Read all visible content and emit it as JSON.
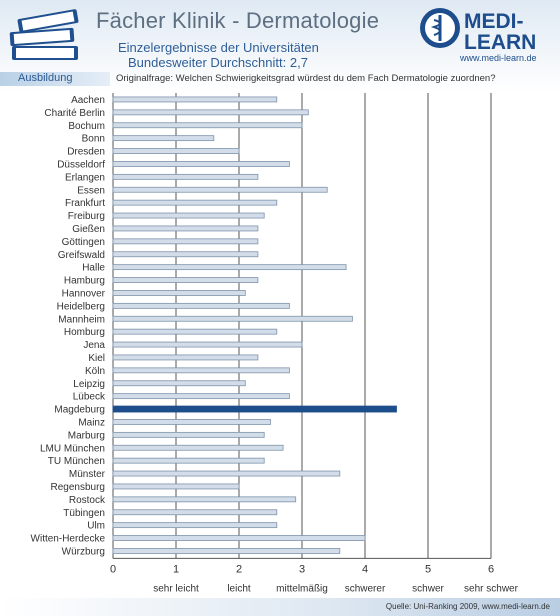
{
  "header": {
    "title": "Fächer Klinik - Dermatologie",
    "subtitle1": "Einzelergebnisse der Universitäten",
    "subtitle2": "Bundesweiter Durchschnitt: 2,7",
    "logo_line1": "MEDI-",
    "logo_line2": "LEARN",
    "logo_url": "www.medi-learn.de"
  },
  "section": {
    "label": "Ausbildung",
    "question": "Originalfrage: Welchen Schwierigkeitsgrad würdest du dem Fach Dermatologie zuordnen?"
  },
  "footer": {
    "source": "Quelle: Uni-Ranking 2009, www.medi-learn.de"
  },
  "colors": {
    "bar": "#d3dde9",
    "bar_border": "#7f93ab",
    "highlight": "#1d4e8b",
    "grid": "#555555"
  },
  "chart_data": {
    "type": "bar",
    "orientation": "horizontal",
    "xlim": [
      0,
      6
    ],
    "x_ticks": [
      0,
      1,
      2,
      3,
      4,
      5,
      6
    ],
    "x_tick_labels": [
      "0",
      "1",
      "2",
      "3",
      "4",
      "5",
      "6"
    ],
    "x_category_labels": [
      {
        "x": 1,
        "label": "sehr leicht"
      },
      {
        "x": 2,
        "label": "leicht"
      },
      {
        "x": 3,
        "label": "mittelmäßig"
      },
      {
        "x": 4,
        "label": "schwerer"
      },
      {
        "x": 5,
        "label": "schwer"
      },
      {
        "x": 6,
        "label": "sehr schwer"
      }
    ],
    "grid": true,
    "highlight": "Magdeburg",
    "categories": [
      "Aachen",
      "Charité Berlin",
      "Bochum",
      "Bonn",
      "Dresden",
      "Düsseldorf",
      "Erlangen",
      "Essen",
      "Frankfurt",
      "Freiburg",
      "Gießen",
      "Göttingen",
      "Greifswald",
      "Halle",
      "Hamburg",
      "Hannover",
      "Heidelberg",
      "Mannheim",
      "Homburg",
      "Jena",
      "Kiel",
      "Köln",
      "Leipzig",
      "Lübeck",
      "Magdeburg",
      "Mainz",
      "Marburg",
      "LMU München",
      "TU München",
      "Münster",
      "Regensburg",
      "Rostock",
      "Tübingen",
      "Ulm",
      "Witten-Herdecke",
      "Würzburg"
    ],
    "values": [
      2.6,
      3.1,
      3.0,
      1.6,
      2.0,
      2.8,
      2.3,
      3.4,
      2.6,
      2.4,
      2.3,
      2.3,
      2.3,
      3.7,
      2.3,
      2.1,
      2.8,
      3.8,
      2.6,
      3.0,
      2.3,
      2.8,
      2.1,
      2.8,
      4.5,
      2.5,
      2.4,
      2.7,
      2.4,
      3.6,
      2.0,
      2.9,
      2.6,
      2.6,
      4.0,
      3.6
    ]
  }
}
